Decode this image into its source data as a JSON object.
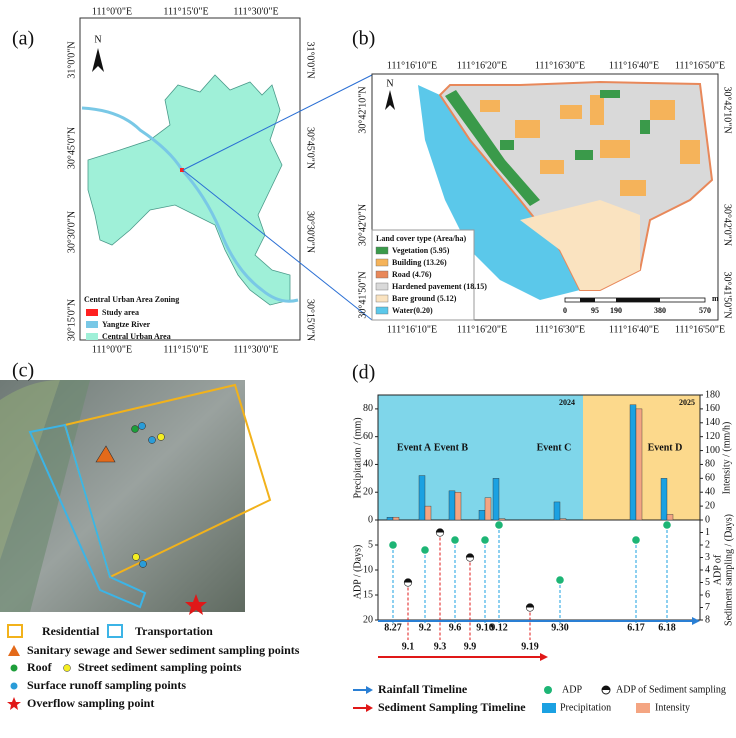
{
  "panel_a": {
    "label": "(a)",
    "north": "N",
    "x_ticks": [
      "111°0'0\"E",
      "111°15'0\"E",
      "111°30'0\"E"
    ],
    "y_ticks": [
      "31°0'0\"N",
      "30°45'0\"N",
      "30°30'0\"N",
      "30°15'0\"N"
    ],
    "legend_title": "Central Urban Area Zoning",
    "legend": [
      {
        "label": "Study area",
        "color": "#ff2020"
      },
      {
        "label": "Yangtze River",
        "color": "#79c8e6"
      },
      {
        "label": "Central Urban Area",
        "color": "#9ff0d8"
      }
    ]
  },
  "panel_b": {
    "label": "(b)",
    "north": "N",
    "x_ticks": [
      "111°16'10\"E",
      "111°16'20\"E",
      "111°16'30\"E",
      "111°16'40\"E",
      "111°16'50\"E"
    ],
    "y_ticks": [
      "30°42'10\"N",
      "30°42'0\"N",
      "30°41'50\"N"
    ],
    "legend_title": "Land cover type (Area/ha)",
    "legend": [
      {
        "label": "Vegetation (5.95)",
        "color": "#3a9a4a"
      },
      {
        "label": "Building (13.26)",
        "color": "#f5b35a"
      },
      {
        "label": "Road (4.76)",
        "color": "#e8885a"
      },
      {
        "label": "Hardened pavement (18.15)",
        "color": "#d9d9d9"
      },
      {
        "label": "Bare ground (5.12)",
        "color": "#fae3c0"
      },
      {
        "label": "Water(0.20)",
        "color": "#5bc8ea"
      }
    ],
    "scale_labels": [
      "0",
      "95",
      "190",
      "380",
      "570"
    ],
    "scale_unit": "m"
  },
  "panel_c": {
    "label": "(c)",
    "legend": [
      "Residential",
      "Transportation",
      "Sanitary sewage and Sewer sediment sampling points",
      "Roof",
      "Street sediment sampling points",
      "Surface runoff sampling points",
      "Overflow sampling point"
    ]
  },
  "chart_data": {
    "type": "bar",
    "label": "(d)",
    "categories": [
      "8.27",
      "9.1",
      "9.2",
      "9.3",
      "9.6",
      "9.9",
      "9.10",
      "9.12",
      "9.19",
      "9.30",
      "6.17",
      "6.18"
    ],
    "periods": [
      {
        "label": "2024",
        "color": "#7fd6ea"
      },
      {
        "label": "2025",
        "color": "#fcd98c"
      }
    ],
    "events": [
      "Event A",
      "Event B",
      "Event C",
      "Event D"
    ],
    "series": [
      {
        "name": "Precipitation",
        "color": "#1ba1e2",
        "values": [
          2,
          null,
          32,
          null,
          21,
          null,
          7,
          30,
          null,
          13,
          83,
          30
        ]
      },
      {
        "name": "Intensity",
        "axis": "y2",
        "color": "#f4a582",
        "values": [
          4,
          null,
          20,
          null,
          40,
          null,
          32,
          2,
          null,
          2,
          160,
          8
        ]
      },
      {
        "name": "ADP",
        "axis": "y3",
        "color": "#1db575",
        "values": [
          5,
          null,
          6,
          null,
          4,
          null,
          4,
          1,
          null,
          12,
          4,
          1
        ]
      },
      {
        "name": "ADP of Sediment sampling",
        "axis": "y4",
        "color": "#111111",
        "values": [
          null,
          5,
          null,
          1,
          null,
          3,
          null,
          null,
          7,
          null,
          null,
          null
        ]
      }
    ],
    "ylim": [
      0,
      90
    ],
    "yticks": [
      0,
      20,
      40,
      60,
      80
    ],
    "ylabel": "Precipitation / (mm)",
    "y2lim": [
      0,
      180
    ],
    "y2ticks": [
      0,
      20,
      40,
      60,
      80,
      100,
      120,
      140,
      160,
      180
    ],
    "y2label": "Intensity / (mm/h)",
    "y3lim": [
      0,
      20
    ],
    "y3ticks": [
      5,
      10,
      15,
      20
    ],
    "y3label": "ADP / (Days)",
    "y4lim": [
      0,
      8
    ],
    "y4ticks": [
      1,
      2,
      3,
      4,
      5,
      6,
      7,
      8
    ],
    "y4label": [
      "ADP of",
      "Sediment sampling / (Days)"
    ],
    "timelines": [
      {
        "label": "Rainfall Timeline",
        "color": "#2a7fd4"
      },
      {
        "label": "Sediment Sampling Timeline",
        "color": "#e01818"
      }
    ]
  }
}
